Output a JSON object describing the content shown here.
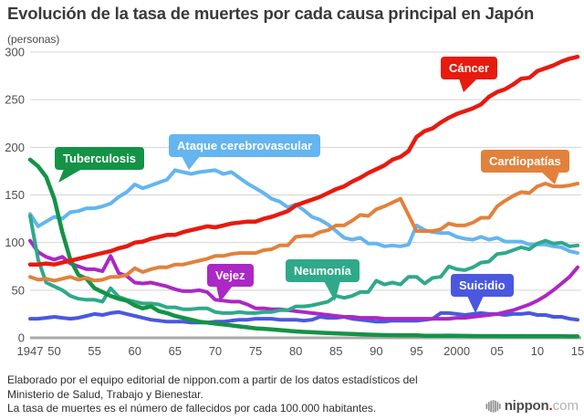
{
  "title": "Evolución de la tasa de muertes por cada causa principal en Japón",
  "chart_data": {
    "type": "line",
    "title": "Evolución de la tasa de muertes por cada causa principal en Japón",
    "unit_label": "(personas)",
    "x_start": 1947,
    "x_end": 2015,
    "x_tick_labels": [
      {
        "year": 1947,
        "label": "1947"
      },
      {
        "year": 1950,
        "label": "50"
      },
      {
        "year": 1955,
        "label": "55"
      },
      {
        "year": 1960,
        "label": "60"
      },
      {
        "year": 1965,
        "label": "65"
      },
      {
        "year": 1970,
        "label": "70"
      },
      {
        "year": 1975,
        "label": "75"
      },
      {
        "year": 1980,
        "label": "80"
      },
      {
        "year": 1985,
        "label": "85"
      },
      {
        "year": 1990,
        "label": "90"
      },
      {
        "year": 1995,
        "label": "95"
      },
      {
        "year": 2000,
        "label": "2000"
      },
      {
        "year": 2005,
        "label": "05"
      },
      {
        "year": 2010,
        "label": "10"
      },
      {
        "year": 2015,
        "label": "15"
      }
    ],
    "ylim": [
      0,
      300
    ],
    "yticks": [
      0,
      50,
      100,
      150,
      200,
      250,
      300
    ],
    "grid": true,
    "grid_color": "#d4d4d4",
    "axis_color": "#a9a9a9",
    "tick_color": "#4f4f4f",
    "legend_position": "labeled-bubbles-on-lines",
    "series": [
      {
        "id": "cerebrovascular",
        "name": "Ataque cerebrovascular",
        "color": "#64b5f0",
        "width": 4,
        "values": [
          130,
          117,
          122,
          127,
          125,
          132,
          133,
          136,
          136,
          138,
          141,
          148,
          153,
          161,
          157,
          160,
          163,
          166,
          176,
          174,
          172,
          174,
          175,
          176,
          172,
          174,
          168,
          162,
          157,
          152,
          146,
          143,
          137,
          140,
          134,
          127,
          124,
          119,
          112,
          105,
          103,
          105,
          99,
          99,
          96,
          97,
          96,
          98,
          118,
          113,
          111,
          110,
          110,
          106,
          104,
          103,
          106,
          103,
          105,
          101,
          101,
          101,
          98,
          98,
          98,
          96,
          95,
          91,
          89
        ]
      },
      {
        "id": "suicidio",
        "name": "Suicidio",
        "color": "#4a58e0",
        "width": 4,
        "values": [
          20,
          20,
          21,
          22,
          21,
          20,
          21,
          23,
          25,
          24,
          26,
          27,
          25,
          23,
          21,
          19,
          18,
          17,
          17,
          17,
          16,
          16,
          16,
          17,
          17,
          18,
          19,
          19,
          20,
          20,
          20,
          19,
          19,
          19,
          18,
          19,
          22,
          21,
          21,
          22,
          20,
          19,
          18,
          17,
          17,
          18,
          18,
          18,
          18,
          19,
          20,
          26,
          26,
          25,
          24,
          25,
          26,
          25,
          25,
          24,
          25,
          25,
          26,
          24,
          24,
          22,
          22,
          20,
          19
        ]
      },
      {
        "id": "vejez",
        "name": "Vejez",
        "color": "#ab28c4",
        "width": 4,
        "values": [
          102,
          90,
          85,
          82,
          85,
          78,
          75,
          72,
          72,
          70,
          86,
          68,
          65,
          58,
          57,
          58,
          56,
          54,
          51,
          49,
          49,
          50,
          48,
          40,
          39,
          38,
          38,
          35,
          31,
          31,
          30,
          30,
          29,
          28,
          27,
          26,
          25,
          24,
          23,
          22,
          22,
          21,
          21,
          21,
          20,
          20,
          20,
          20,
          20,
          20,
          20,
          20,
          20,
          21,
          21,
          22,
          23,
          24,
          25,
          27,
          29,
          32,
          35,
          39,
          44,
          50,
          57,
          64,
          74
        ]
      },
      {
        "id": "neumonia",
        "name": "Neumonía",
        "color": "#2fa98a",
        "width": 4,
        "values": [
          128,
          82,
          58,
          54,
          50,
          44,
          41,
          40,
          40,
          38,
          52,
          43,
          40,
          38,
          36,
          36,
          35,
          32,
          32,
          30,
          30,
          31,
          31,
          27,
          26,
          26,
          27,
          26,
          26,
          27,
          27,
          29,
          29,
          33,
          33,
          34,
          36,
          38,
          44,
          42,
          44,
          48,
          48,
          60,
          56,
          58,
          56,
          64,
          64,
          57,
          63,
          64,
          75,
          72,
          71,
          74,
          79,
          80,
          88,
          89,
          92,
          95,
          93,
          99,
          102,
          99,
          100,
          96,
          97
        ]
      },
      {
        "id": "tuberculosis",
        "name": "Tuberculosis",
        "color": "#149347",
        "width": 4.5,
        "values": [
          187,
          180,
          169,
          146,
          111,
          82,
          66,
          62,
          52,
          48,
          44,
          41,
          39,
          34,
          31,
          33,
          28,
          26,
          23,
          21,
          19,
          17,
          16,
          15,
          14,
          13,
          12,
          11,
          10,
          9.5,
          8.8,
          8.1,
          7.5,
          6.7,
          6.2,
          5.8,
          5.4,
          5,
          4.7,
          4.3,
          4,
          3.7,
          3.4,
          3.1,
          2.9,
          2.8,
          2.7,
          2.6,
          2.6,
          2.2,
          2.2,
          2.1,
          2.3,
          2.1,
          2,
          1.9,
          1.8,
          1.8,
          1.8,
          1.7,
          1.7,
          1.8,
          1.7,
          1.7,
          1.7,
          1.7,
          1.6,
          1.5,
          1.5
        ]
      },
      {
        "id": "cardiopatias",
        "name": "Cardiopatías",
        "color": "#e2813b",
        "width": 4,
        "values": [
          64,
          61,
          62,
          60,
          62,
          64,
          61,
          63,
          60,
          61,
          64,
          64,
          66,
          73,
          69,
          72,
          74,
          74,
          77,
          77,
          79,
          81,
          83,
          86,
          86,
          88,
          89,
          89,
          89,
          92,
          93,
          97,
          97,
          106,
          107,
          107,
          111,
          113,
          118,
          118,
          123,
          129,
          128,
          135,
          138,
          142,
          146,
          129,
          112,
          112,
          112,
          114,
          120,
          118,
          118,
          121,
          126,
          126,
          138,
          144,
          149,
          153,
          152,
          159,
          162,
          159,
          159,
          160,
          162
        ]
      },
      {
        "id": "cancer",
        "name": "Cáncer",
        "color": "#e71a0f",
        "width": 4.5,
        "values": [
          77,
          77,
          78,
          77,
          79,
          81,
          83,
          85,
          87,
          89,
          91,
          94,
          96,
          100,
          101,
          104,
          106,
          108,
          108,
          111,
          113,
          115,
          117,
          116,
          118,
          120,
          121,
          122,
          122,
          125,
          127,
          130,
          133,
          139,
          142,
          145,
          148,
          152,
          156,
          159,
          164,
          168,
          173,
          177,
          181,
          187,
          190,
          196,
          211,
          217,
          220,
          226,
          231,
          235,
          238,
          241,
          245,
          253,
          258,
          261,
          266,
          272,
          273,
          280,
          283,
          286,
          290,
          293,
          295
        ]
      }
    ]
  },
  "footer": {
    "line1": "Elaborado por el equipo editorial de nippon.com a partir de los datos estadísticos del",
    "line2": "Ministerio de Salud, Trabajo y Bienestar.",
    "line3": "La tasa de muertes es el número de fallecidos por cada 100.000 habitantes."
  },
  "logo": {
    "name": "nippon",
    "dot": ".",
    "suffix": "com",
    "dot_color": "#e60012"
  }
}
